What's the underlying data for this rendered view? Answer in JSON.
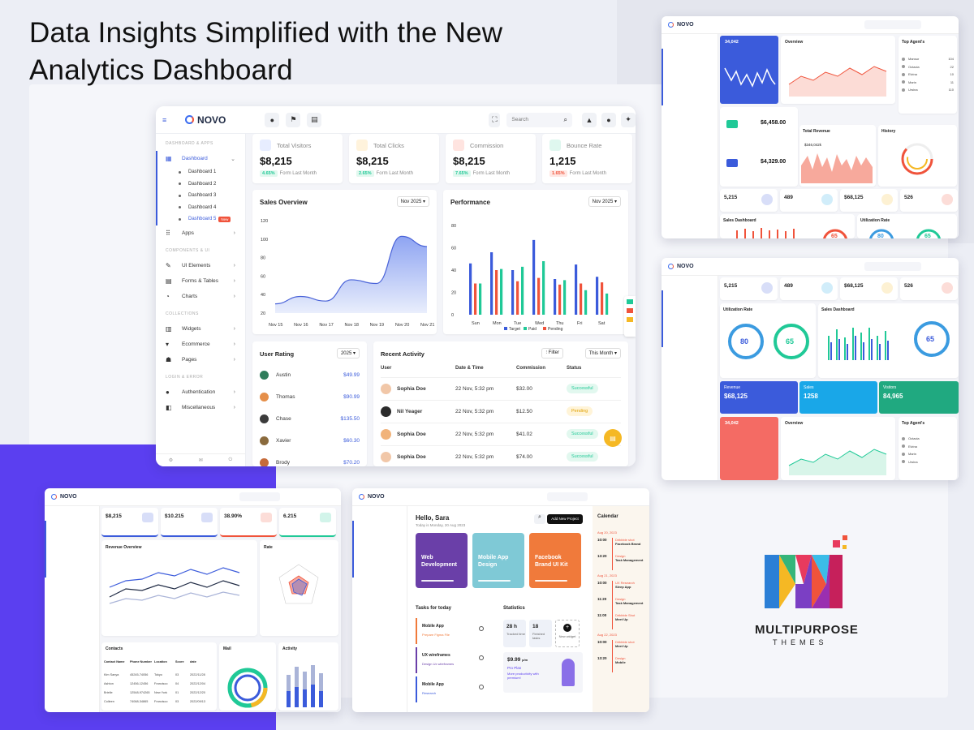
{
  "headline": {
    "line1": "Data Insights Simplified with the New",
    "line2": "Analytics Dashboard"
  },
  "brand": {
    "logo_text": "NOVO",
    "company_line1": "MULTIPURPOSE",
    "company_line2": "THEMES"
  },
  "colors": {
    "primary": "#3b5bdb",
    "accent_orange": "#f0533b",
    "purple": "#5b3ff0",
    "success": "#20c997",
    "warning": "#f5b824"
  },
  "main_shot": {
    "search_placeholder": "Search",
    "sidebar": {
      "section1": "DASHBOARD & APPS",
      "dashboard": "Dashboard",
      "subs": [
        "Dashboard 1",
        "Dashboard 2",
        "Dashboard 3",
        "Dashboard 4",
        "Dashboard 5"
      ],
      "new_badge": "New",
      "apps": "Apps",
      "section2": "COMPONENTS & UI",
      "ui": "UI Elements",
      "forms": "Forms & Tables",
      "charts": "Charts",
      "section3": "COLLECTIONS",
      "widgets": "Widgets",
      "ecommerce": "Ecommerce",
      "pages": "Pages",
      "section4": "LOGIN & ERROR",
      "auth": "Authentication",
      "misc": "Miscellaneous"
    },
    "stats": [
      {
        "label": "Total Visitors",
        "value": "$8,215",
        "chip": "4.65%",
        "sub": "Form Last Month",
        "icon": "users-icon",
        "icon_bg": "#e7edff",
        "chip_color": "#20c997",
        "chip_bg": "#e2f8ef"
      },
      {
        "label": "Total Clicks",
        "value": "$8,215",
        "chip": "2.65%",
        "sub": "Form Last Month",
        "icon": "click-icon",
        "icon_bg": "#fff3dc",
        "chip_color": "#20c997",
        "chip_bg": "#e2f8ef"
      },
      {
        "label": "Commission",
        "value": "$8,215",
        "chip": "7.65%",
        "sub": "Form Last Month",
        "icon": "commission-icon",
        "icon_bg": "#ffe4e0",
        "chip_color": "#20c997",
        "chip_bg": "#e2f8ef"
      },
      {
        "label": "Bounce Rate",
        "value": "1,215",
        "chip": "1.65%",
        "sub": "Form Last Month",
        "icon": "bounce-icon",
        "icon_bg": "#dff7ef",
        "chip_color": "#f0533b",
        "chip_bg": "#ffe7e3"
      }
    ],
    "sales_overview": {
      "title": "Sales Overview",
      "period": "Nov 2025"
    },
    "performance": {
      "title": "Performance",
      "period": "Nov 2025",
      "legend": [
        "Target",
        "Paid",
        "Pending"
      ]
    },
    "user_rating": {
      "title": "User Rating",
      "year": "2025",
      "rows": [
        {
          "name": "Austin",
          "value": "$49.99"
        },
        {
          "name": "Thomas",
          "value": "$90.99"
        },
        {
          "name": "Chase",
          "value": "$135.50"
        },
        {
          "name": "Xavier",
          "value": "$60.30"
        },
        {
          "name": "Brody",
          "value": "$70.20"
        }
      ]
    },
    "recent_activity": {
      "title": "Recent Activity",
      "filter": "Filter",
      "period": "This Month",
      "headers": [
        "User",
        "Date & Time",
        "Commission",
        "Status"
      ],
      "rows": [
        {
          "user": "Sophia Doe",
          "date": "22 Nov, 5:32 pm",
          "commission": "$32.00",
          "status": "Successful"
        },
        {
          "user": "Nil Yeager",
          "date": "22 Nov, 5:32 pm",
          "commission": "$12.50",
          "status": "Pending"
        },
        {
          "user": "Sophia Doe",
          "date": "22 Nov, 5:32 pm",
          "commission": "$41.02",
          "status": "Successful"
        },
        {
          "user": "Sophia Doe",
          "date": "22 Nov, 5:32 pm",
          "commission": "$74.00",
          "status": "Successful"
        }
      ]
    }
  },
  "chart_data": [
    {
      "type": "area",
      "title": "Sales Overview",
      "categories": [
        "Nov 15",
        "Nov 16",
        "Nov 17",
        "Nov 18",
        "Nov 19",
        "Nov 20",
        "Nov 21"
      ],
      "values": [
        30,
        38,
        33,
        56,
        52,
        103,
        92
      ],
      "ylim": [
        20,
        120
      ],
      "yticks": [
        120,
        100,
        80,
        60,
        40,
        20
      ]
    },
    {
      "type": "bar",
      "title": "Performance",
      "categories": [
        "Sun",
        "Mon",
        "Tue",
        "Wed",
        "Thu",
        "Fri",
        "Sat"
      ],
      "ylim": [
        0,
        80
      ],
      "yticks": [
        80,
        60,
        40,
        20,
        0
      ],
      "series": [
        {
          "name": "Target",
          "values": [
            [
              46,
              23
            ],
            [
              56,
              32
            ],
            [
              40,
              25
            ],
            [
              67,
              32
            ],
            [
              32,
              34
            ],
            [
              45,
              53
            ],
            [
              34,
              21
            ]
          ]
        },
        {
          "name": "Paid",
          "values": [
            [
              28,
              17
            ],
            [
              41,
              36
            ],
            [
              43,
              26
            ],
            [
              48,
              31
            ],
            [
              31,
              20
            ],
            [
              22,
              20
            ],
            [
              19,
              35
            ]
          ]
        },
        {
          "name": "Pending",
          "values": [
            [
              28,
              0
            ],
            [
              40,
              0
            ],
            [
              30,
              0
            ],
            [
              33,
              0
            ],
            [
              27,
              0
            ],
            [
              28,
              0
            ],
            [
              29,
              0
            ]
          ]
        }
      ]
    }
  ],
  "top_right": {
    "stat_card": "34,042",
    "overview": "Overview",
    "top_agents": "Top Agent's",
    "agents": [
      "Mansur",
      "Octavia",
      "Elvina",
      "Marin",
      "Ursina"
    ],
    "agent_values": [
      "104",
      "22",
      "10",
      "11",
      "110"
    ],
    "total_revenue": "Total Revenue",
    "rev1": "$6,458.00",
    "rev2": "$4,329.00",
    "rev_note": "$346,042k",
    "history": "History",
    "mini_stats": [
      "5,215",
      "489",
      "$68,125",
      "526"
    ],
    "sales_dashboard": "Sales Dashboard",
    "utilization": "Utilization Rate",
    "g1": "65",
    "g2": "80",
    "g3": "65"
  },
  "mid_right": {
    "mini_stats": [
      "5,215",
      "489",
      "$68,125",
      "526"
    ],
    "utilization": "Utilization Rate",
    "g1": "80",
    "g2": "65",
    "sales_dashboard": "Sales Dashboard",
    "g3": "65",
    "revenue": "Revenue",
    "revenue_val": "$68,125",
    "sales": "Sales",
    "sales_val": "1258",
    "visitors": "Visitors",
    "visitors_val": "84,965",
    "stat_card": "34,042",
    "overview": "Overview",
    "top_agents": "Top Agent's",
    "agents": [
      "Octavia",
      "Elvina",
      "Marin",
      "Ursina"
    ]
  },
  "bottom_left": {
    "stats": [
      "$8,215",
      "$10.215",
      "38.90%",
      "6.215"
    ],
    "revenue_overview": "Revenue Overview",
    "rate": "Rate",
    "contacts": "Contacts",
    "mail": "Mail",
    "activity": "Activity",
    "contact_headers": [
      "Contact Name",
      "Phone Number",
      "Location",
      "Score",
      "date"
    ],
    "contacts_rows": [
      [
        "Kim Sanya",
        "45245-74056",
        "Tokyo",
        "03",
        "2022/11/28"
      ],
      [
        "Ashton",
        "12456-12456",
        "Francisco",
        "04",
        "2022/12/04"
      ],
      [
        "Brielle",
        "12548-974265",
        "New York",
        "01",
        "2022/12/20"
      ],
      [
        "Colleen",
        "74068-34865",
        "Francisco",
        "03",
        "2022/09/13"
      ]
    ]
  },
  "bottom_mid": {
    "greeting": "Hello, Sara",
    "date_line": "Today is Monday, 20 Aug 2023",
    "add_project": "Add New Project",
    "projects": [
      "Web Development",
      "Mobile App Design",
      "Facebook Brand UI Kit"
    ],
    "tasks_title": "Tasks for today",
    "tasks": [
      {
        "name": "Mobile App",
        "sub": "Prepare Figma File"
      },
      {
        "name": "UX wireframes",
        "sub": "Design Ux wireframes"
      },
      {
        "name": "Mobile App",
        "sub": "Research"
      }
    ],
    "statistics": "Statistics",
    "stat1": "28 h",
    "stat1_label": "Tracked time",
    "stat2": "18",
    "stat2_label": "Finished tasks",
    "new_widget": "New widget",
    "price": "$9.99",
    "price_unit": "p/m",
    "plan": "Pro Plan",
    "plan_note": "More productivity with premium!",
    "calendar": "Calendar",
    "cal_dates": [
      "Aug 20, 2023",
      "Aug 21, 2023",
      "Aug 22, 2023"
    ],
    "cal_items": [
      {
        "time": "10:00",
        "title": "Dribbble shot",
        "sub": "Facebook Brand"
      },
      {
        "time": "13:20",
        "title": "Design",
        "sub": "Task Management"
      },
      {
        "time": "10:00",
        "title": "UX Research",
        "sub": "Sleep App"
      },
      {
        "time": "11:20",
        "title": "Design",
        "sub": "Task Management"
      },
      {
        "time": "11:00",
        "title": "Dribbble Shot",
        "sub": "Meet Up"
      },
      {
        "time": "10:00",
        "title": "Dribbble shot",
        "sub": "Meet Up"
      },
      {
        "time": "13:20",
        "title": "Design",
        "sub": "Mobile"
      }
    ]
  }
}
